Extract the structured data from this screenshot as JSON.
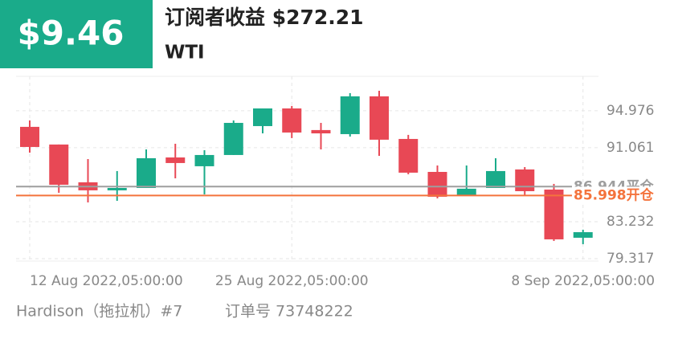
{
  "header": {
    "badge": "$9.46",
    "title": "订阅者收益 $272.21",
    "symbol": "WTI"
  },
  "chart_data": {
    "type": "candlestick",
    "categories": [
      "12 Aug 2022,05:00:00",
      null,
      null,
      null,
      null,
      null,
      null,
      null,
      null,
      "25 Aug 2022,05:00:00",
      null,
      null,
      null,
      null,
      null,
      null,
      null,
      null,
      null,
      "8 Sep 2022,05:00:00"
    ],
    "open": [
      93.27,
      91.4,
      87.4,
      86.55,
      86.8,
      90.03,
      89.1,
      90.29,
      93.35,
      95.22,
      92.93,
      92.5,
      96.5,
      91.99,
      88.5,
      86.04,
      86.8,
      88.76,
      86.63,
      81.53
    ],
    "high": [
      93.95,
      91.4,
      89.86,
      88.59,
      90.88,
      91.48,
      90.8,
      93.95,
      95.22,
      95.48,
      93.69,
      96.84,
      97.09,
      92.42,
      89.18,
      89.18,
      89.95,
      89.01,
      87.23,
      82.38
    ],
    "low": [
      90.54,
      86.29,
      85.27,
      85.44,
      86.8,
      87.82,
      86.12,
      90.29,
      92.58,
      92.08,
      90.88,
      92.24,
      90.2,
      88.25,
      85.7,
      86.04,
      86.8,
      86.04,
      81.19,
      80.85
    ],
    "close": [
      91.14,
      87.14,
      86.55,
      86.8,
      89.95,
      89.44,
      90.29,
      93.69,
      95.22,
      92.67,
      92.58,
      96.5,
      91.91,
      88.42,
      85.87,
      86.72,
      88.59,
      86.46,
      81.36,
      82.12
    ],
    "up_color": "#1aab8a",
    "down_color": "#e84855",
    "ylim": [
      79.06,
      98.62
    ],
    "yticks": [
      79.317,
      83.232,
      91.061,
      94.976
    ],
    "grid": true,
    "reference_lines": [
      {
        "value": 86.944,
        "label": "86.944平仓",
        "color": "#9e9e9e"
      },
      {
        "value": 85.998,
        "label": "85.998开仓",
        "color": "#f4733c"
      }
    ]
  },
  "footer": {
    "account": "Hardison（拖拉机）#7",
    "order": "订单号 73748222"
  }
}
